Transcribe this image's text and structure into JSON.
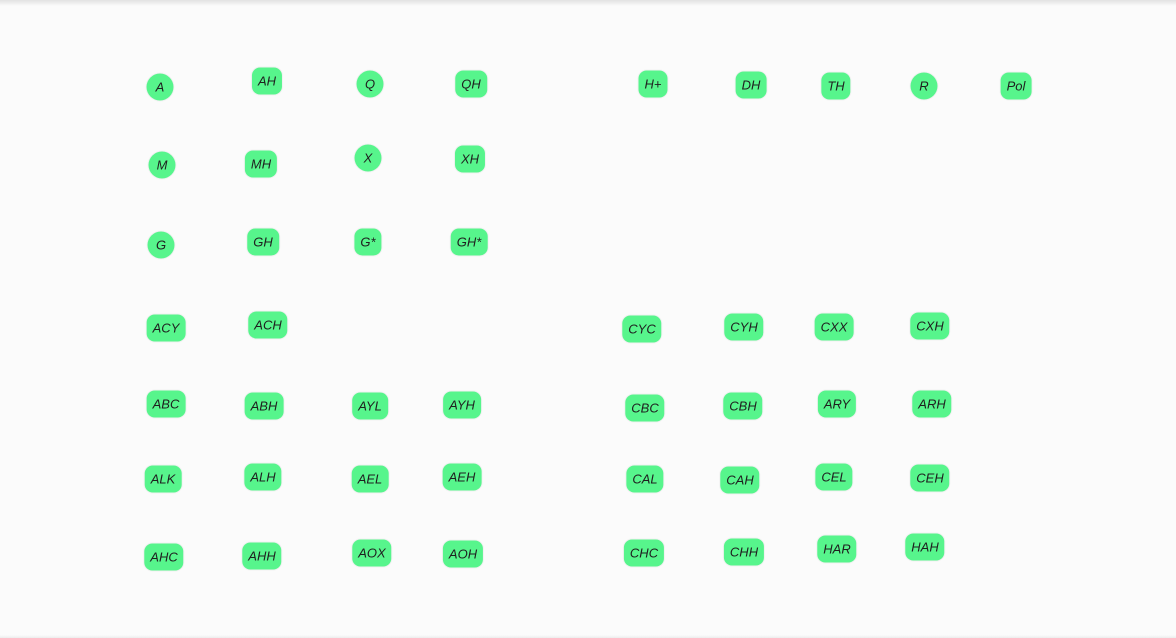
{
  "node_color": "#57f58c",
  "text_color": "#1f1f1f",
  "nodes": [
    {
      "id": "A",
      "label": "A"
    },
    {
      "id": "AH",
      "label": "AH"
    },
    {
      "id": "Q",
      "label": "Q"
    },
    {
      "id": "QH",
      "label": "QH"
    },
    {
      "id": "H+",
      "label": "H+"
    },
    {
      "id": "DH",
      "label": "DH"
    },
    {
      "id": "TH",
      "label": "TH"
    },
    {
      "id": "R",
      "label": "R"
    },
    {
      "id": "Pol",
      "label": "Pol"
    },
    {
      "id": "M",
      "label": "M"
    },
    {
      "id": "MH",
      "label": "MH"
    },
    {
      "id": "X",
      "label": "X"
    },
    {
      "id": "XH",
      "label": "XH"
    },
    {
      "id": "G",
      "label": "G"
    },
    {
      "id": "GH",
      "label": "GH"
    },
    {
      "id": "G*",
      "label": "G*"
    },
    {
      "id": "GH*",
      "label": "GH*"
    },
    {
      "id": "ACY",
      "label": "ACY"
    },
    {
      "id": "ACH",
      "label": "ACH"
    },
    {
      "id": "CYC",
      "label": "CYC"
    },
    {
      "id": "CYH",
      "label": "CYH"
    },
    {
      "id": "CXX",
      "label": "CXX"
    },
    {
      "id": "CXH",
      "label": "CXH"
    },
    {
      "id": "ABC",
      "label": "ABC"
    },
    {
      "id": "ABH",
      "label": "ABH"
    },
    {
      "id": "AYL",
      "label": "AYL"
    },
    {
      "id": "AYH",
      "label": "AYH"
    },
    {
      "id": "CBC",
      "label": "CBC"
    },
    {
      "id": "CBH",
      "label": "CBH"
    },
    {
      "id": "ARY",
      "label": "ARY"
    },
    {
      "id": "ARH",
      "label": "ARH"
    },
    {
      "id": "ALK",
      "label": "ALK"
    },
    {
      "id": "ALH",
      "label": "ALH"
    },
    {
      "id": "AEL",
      "label": "AEL"
    },
    {
      "id": "AEH",
      "label": "AEH"
    },
    {
      "id": "CAL",
      "label": "CAL"
    },
    {
      "id": "CAH",
      "label": "CAH"
    },
    {
      "id": "CEL",
      "label": "CEL"
    },
    {
      "id": "CEH",
      "label": "CEH"
    },
    {
      "id": "AHC",
      "label": "AHC"
    },
    {
      "id": "AHH",
      "label": "AHH"
    },
    {
      "id": "AOX",
      "label": "AOX"
    },
    {
      "id": "AOH",
      "label": "AOH"
    },
    {
      "id": "CHC",
      "label": "CHC"
    },
    {
      "id": "CHH",
      "label": "CHH"
    },
    {
      "id": "HAR",
      "label": "HAR"
    },
    {
      "id": "HAH",
      "label": "HAH"
    }
  ]
}
